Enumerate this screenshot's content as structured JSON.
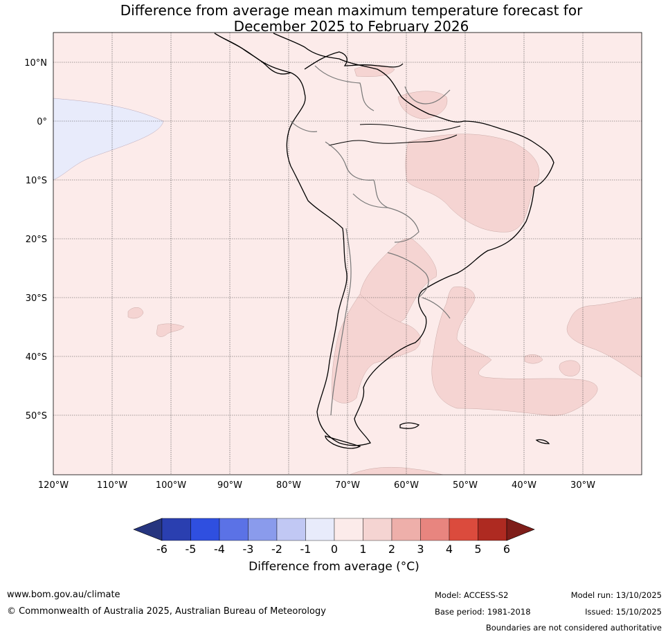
{
  "title_line1": "Difference from average mean maximum temperature forecast for",
  "title_line2": "December 2025 to February 2026",
  "lat_labels": [
    "10°N",
    "0°",
    "10°S",
    "20°S",
    "30°S",
    "40°S",
    "50°S"
  ],
  "lon_labels": [
    "120°W",
    "110°W",
    "100°W",
    "90°W",
    "80°W",
    "70°W",
    "60°W",
    "50°W",
    "40°W",
    "30°W"
  ],
  "colorbar": {
    "ticks": [
      "-6",
      "-5",
      "-4",
      "-3",
      "-2",
      "-1",
      "0",
      "1",
      "2",
      "3",
      "4",
      "5",
      "6"
    ],
    "colors": [
      "#26357f",
      "#2a3fb0",
      "#2f4fe0",
      "#5b72e6",
      "#8a9bec",
      "#c1c8f4",
      "#e8ebfb",
      "#fcebea",
      "#f5d4d2",
      "#eeafaa",
      "#e8857f",
      "#db4b3d",
      "#ae2a21",
      "#7e1d19"
    ],
    "label": "Difference from average (°C)"
  },
  "map_colors": {
    "background": "#fcebea",
    "warm_1_2": "#f5d4d2",
    "cool_0_m1": "#e8ebfb",
    "coast": "#000000",
    "border": "#777777",
    "grid": "#444444"
  },
  "footer": {
    "url": "www.bom.gov.au/climate",
    "copyright": "© Commonwealth of Australia 2025, Australian Bureau of Meteorology",
    "model": "Model: ACCESS-S2",
    "model_run": "Model run: 13/10/2025",
    "base_period": "Base period: 1981-2018",
    "issued": "Issued: 15/10/2025",
    "disclaimer": "Boundaries are not considered authoritative"
  }
}
